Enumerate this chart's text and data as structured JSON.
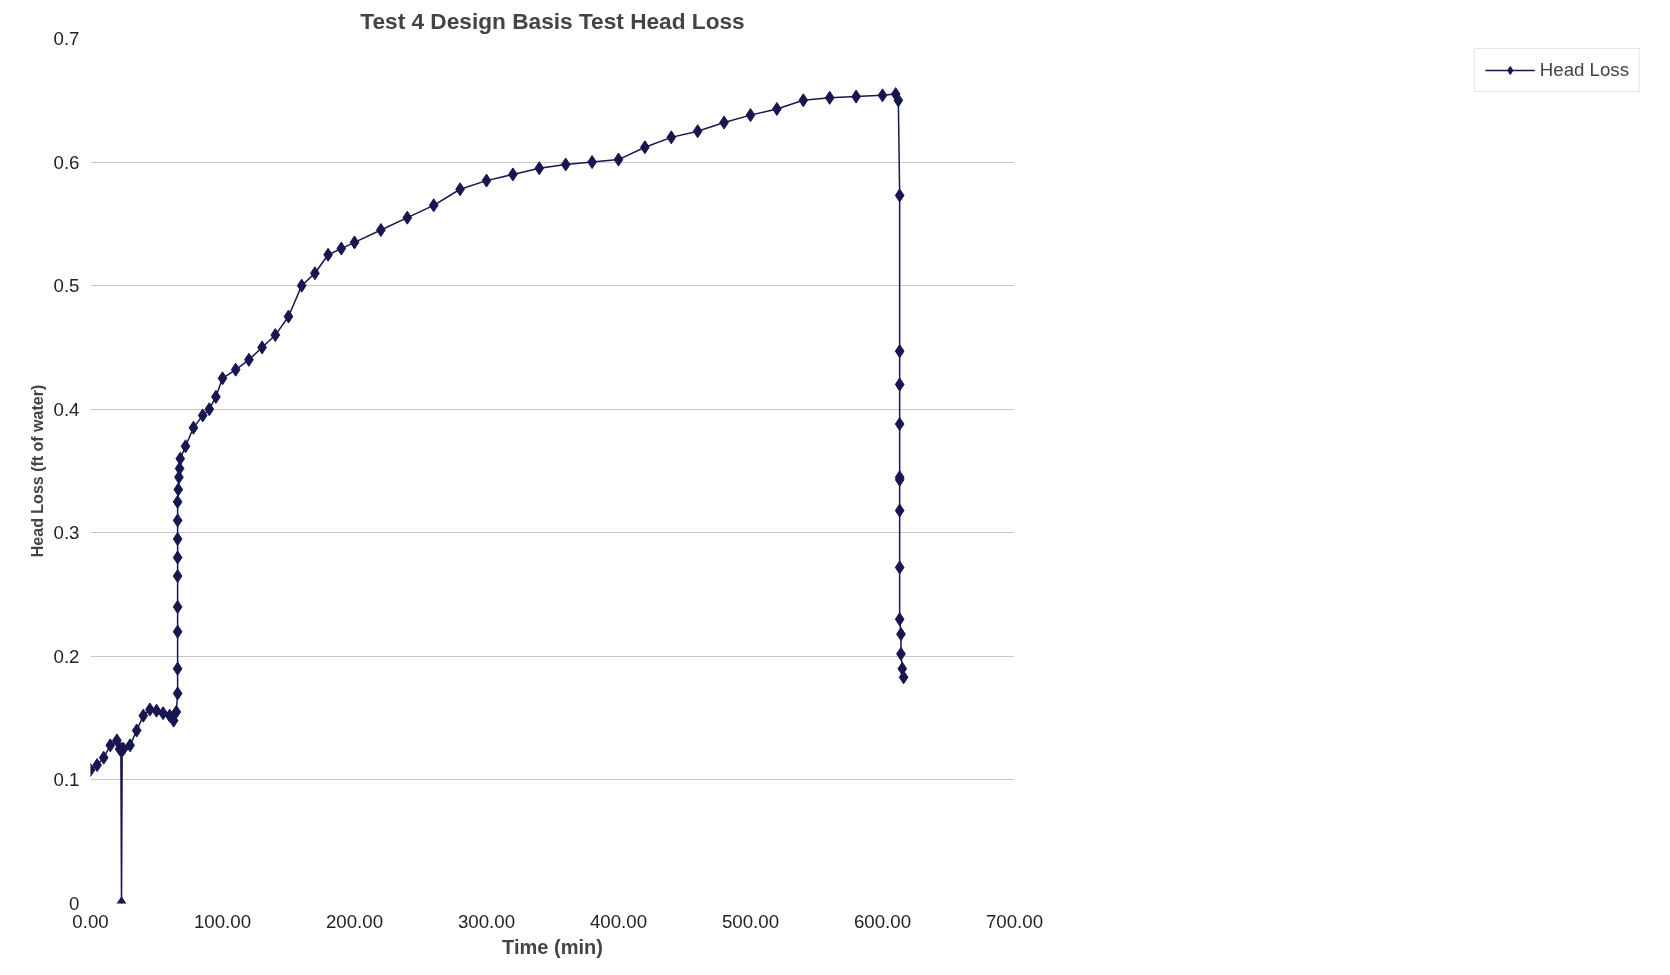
{
  "chart_data": {
    "type": "line",
    "title": "Test 4 Design Basis Test Head Loss",
    "xlabel": "Time (min)",
    "ylabel": "Head Loss (ft of water)",
    "xlim": [
      0,
      700
    ],
    "ylim": [
      0,
      0.7
    ],
    "xticks": [
      {
        "value": 0,
        "label": "0.00"
      },
      {
        "value": 100,
        "label": "100.00"
      },
      {
        "value": 200,
        "label": "200.00"
      },
      {
        "value": 300,
        "label": "300.00"
      },
      {
        "value": 400,
        "label": "400.00"
      },
      {
        "value": 500,
        "label": "500.00"
      },
      {
        "value": 600,
        "label": "600.00"
      },
      {
        "value": 700,
        "label": "700.00"
      }
    ],
    "yticks": [
      {
        "value": 0,
        "label": "0"
      },
      0.1,
      0.2,
      0.3,
      0.4,
      0.5,
      0.6,
      0.7
    ],
    "grid": "y",
    "legend": "right",
    "marker": "diamond",
    "line_style": "solid",
    "series": [
      {
        "name": "Head Loss",
        "color": "#161650",
        "x": [
          0,
          5,
          10,
          15,
          20,
          22,
          23,
          23.5,
          24,
          25,
          30,
          35,
          40,
          45,
          50,
          55,
          60,
          63,
          65,
          66,
          66,
          66,
          66,
          66,
          66,
          66,
          66,
          66,
          66.5,
          67,
          67.5,
          68,
          72,
          78,
          85,
          90,
          95,
          100,
          110,
          120,
          130,
          140,
          150,
          160,
          170,
          180,
          190,
          200,
          220,
          240,
          260,
          280,
          300,
          320,
          340,
          360,
          380,
          400,
          420,
          440,
          460,
          480,
          500,
          520,
          540,
          560,
          580,
          600,
          610,
          612,
          613,
          613,
          613,
          613,
          613,
          613,
          613,
          613,
          613,
          614,
          614,
          615,
          616
        ],
        "values": [
          0.108,
          0.112,
          0.118,
          0.128,
          0.132,
          0.125,
          0.125,
          0,
          0.125,
          0.125,
          0.128,
          0.14,
          0.152,
          0.157,
          0.156,
          0.154,
          0.152,
          0.148,
          0.155,
          0.17,
          0.19,
          0.22,
          0.24,
          0.265,
          0.28,
          0.295,
          0.31,
          0.325,
          0.335,
          0.345,
          0.352,
          0.36,
          0.37,
          0.385,
          0.395,
          0.4,
          0.41,
          0.425,
          0.432,
          0.44,
          0.45,
          0.46,
          0.475,
          0.5,
          0.51,
          0.525,
          0.53,
          0.535,
          0.545,
          0.555,
          0.565,
          0.578,
          0.585,
          0.59,
          0.595,
          0.598,
          0.6,
          0.602,
          0.612,
          0.62,
          0.625,
          0.632,
          0.638,
          0.643,
          0.65,
          0.652,
          0.653,
          0.654,
          0.655,
          0.65,
          0.573,
          0.447,
          0.42,
          0.388,
          0.345,
          0.343,
          0.318,
          0.272,
          0.23,
          0.218,
          0.202,
          0.19,
          0.183
        ]
      }
    ]
  }
}
